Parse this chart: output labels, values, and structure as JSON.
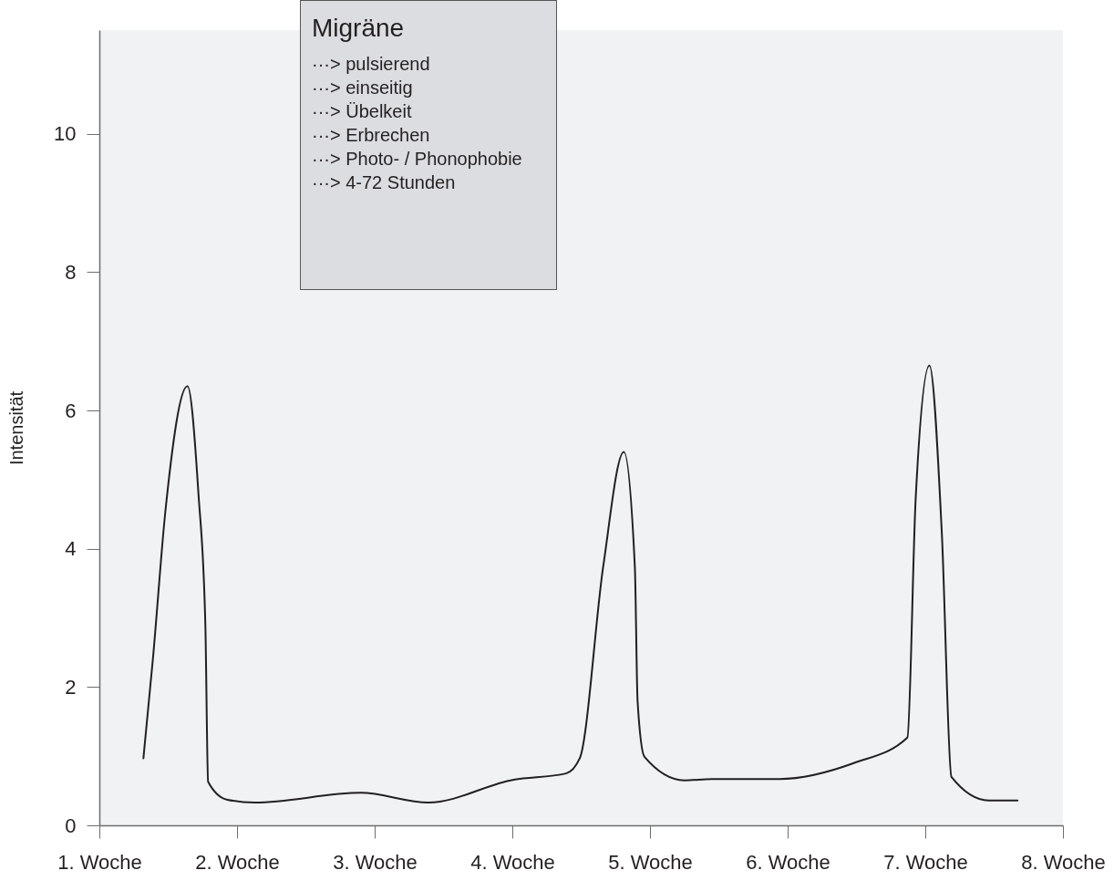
{
  "chart_data": {
    "type": "line",
    "ylabel": "Intensität",
    "series": [
      {
        "color": "#231f20",
        "x": [
          1.32,
          1.39,
          1.48,
          1.64,
          1.72,
          1.77,
          1.79,
          1.93,
          2.13,
          2.9,
          3.39,
          4.01,
          4.39,
          4.49,
          4.66,
          4.81,
          4.89,
          4.91,
          4.96,
          5.25,
          5.45,
          5.94,
          6.48,
          6.87,
          6.93,
          7.03,
          7.12,
          7.19,
          7.46,
          7.67
        ],
        "values": [
          0.97,
          2.43,
          4.55,
          6.35,
          4.79,
          2.9,
          0.63,
          0.37,
          0.33,
          0.47,
          0.33,
          0.66,
          0.75,
          0.97,
          3.74,
          5.4,
          3.74,
          1.79,
          0.99,
          0.65,
          0.67,
          0.67,
          0.9,
          1.27,
          4.72,
          6.65,
          4.23,
          0.7,
          0.36,
          0.36
        ]
      }
    ],
    "xlim": [
      1,
      8
    ],
    "xticks": [
      {
        "value": 1,
        "label": "1. Woche"
      },
      {
        "value": 2,
        "label": "2. Woche"
      },
      {
        "value": 3,
        "label": "3. Woche"
      },
      {
        "value": 4,
        "label": "4. Woche"
      },
      {
        "value": 5,
        "label": "5. Woche"
      },
      {
        "value": 6,
        "label": "6. Woche"
      },
      {
        "value": 7,
        "label": "7. Woche"
      },
      {
        "value": 8,
        "label": "8. Woche"
      }
    ],
    "ylim": [
      0,
      11.5
    ],
    "yticks": [
      0,
      2,
      4,
      6,
      8,
      10
    ],
    "grid": false,
    "line_style": "solid",
    "annotations": [
      "Migräne",
      "···> pulsierend",
      "···> einseitig",
      "···> Übelkeit",
      "···> Erbrechen",
      "···> Photo- / Phonophobie",
      "···> 4-72 Stunden"
    ]
  }
}
